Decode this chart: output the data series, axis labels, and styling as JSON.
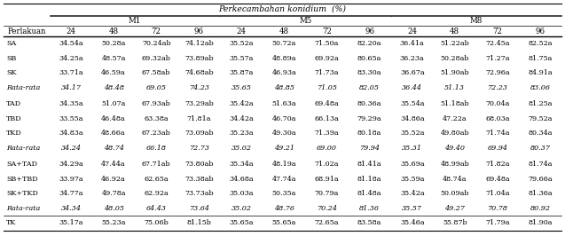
{
  "title": "Perkecambahan konidium  (%)",
  "time_labels": [
    "24",
    "48",
    "72",
    "96"
  ],
  "rows": [
    [
      "SA",
      "34.54a",
      "50.28a",
      "70.24ab",
      "74.12ab",
      "35.52a",
      "50.72a",
      "71.50a",
      "82.20a",
      "36.41a",
      "51.22ab",
      "72.45a",
      "82.52a"
    ],
    [
      "SB",
      "34.25a",
      "48.57a",
      "69.32ab",
      "73.89ab",
      "35.57a",
      "48.89a",
      "69.92a",
      "80.65a",
      "36.23a",
      "50.28ab",
      "71.27a",
      "81.75a"
    ],
    [
      "SK",
      "33.71a",
      "46.59a",
      "67.58ab",
      "74.68ab",
      "35.87a",
      "46.93a",
      "71.73a",
      "83.30a",
      "36.67a",
      "51.90ab",
      "72.96a",
      "84.91a"
    ],
    [
      "Rata-rata",
      "34.17",
      "48.48",
      "69.05",
      "74.23",
      "35.65",
      "48.85",
      "71.05",
      "82.05",
      "36.44",
      "51.13",
      "72.23",
      "83.06"
    ],
    [
      "TAD",
      "34.35a",
      "51.07a",
      "67.93ab",
      "73.29ab",
      "35.42a",
      "51.63a",
      "69.48a",
      "80.36a",
      "35.54a",
      "51.18ab",
      "70.04a",
      "81.25a"
    ],
    [
      "TBD",
      "33.55a",
      "46.48a",
      "63.38a",
      "71.81a",
      "34.42a",
      "46.70a",
      "66.13a",
      "79.29a",
      "34.86a",
      "47.22a",
      "68.03a",
      "79.52a"
    ],
    [
      "TKD",
      "34.83a",
      "48.66a",
      "67.23ab",
      "73.09ab",
      "35.23a",
      "49.30a",
      "71.39a",
      "80.18a",
      "35.52a",
      "49.80ab",
      "71.74a",
      "80.34a"
    ],
    [
      "Rata-rata",
      "34.24",
      "48.74",
      "66.18",
      "72.73",
      "35.02",
      "49.21",
      "69.00",
      "79.94",
      "35.31",
      "49.40",
      "69.94",
      "80.37"
    ],
    [
      "SA+TAD",
      "34.29a",
      "47.44a",
      "67.71ab",
      "73.80ab",
      "35.34a",
      "48.19a",
      "71.02a",
      "81.41a",
      "35.69a",
      "48.99ab",
      "71.82a",
      "81.74a"
    ],
    [
      "SB+TBD",
      "33.97a",
      "46.92a",
      "62.65a",
      "73.38ab",
      "34.68a",
      "47.74a",
      "68.91a",
      "81.18a",
      "35.59a",
      "48.74a",
      "69.48a",
      "79.66a"
    ],
    [
      "SK+TKD",
      "34.77a",
      "49.78a",
      "62.92a",
      "73.73ab",
      "35.03a",
      "50.35a",
      "70.79a",
      "81.48a",
      "35.42a",
      "50.09ab",
      "71.04a",
      "81.36a"
    ],
    [
      "Rata-rata",
      "34.34",
      "48.05",
      "64.43",
      "73.64",
      "35.02",
      "48.76",
      "70.24",
      "81.36",
      "35.57",
      "49.27",
      "70.78",
      "80.92"
    ],
    [
      "TK",
      "35.17a",
      "55.23a",
      "75.06b",
      "81.15b",
      "35.65a",
      "55.65a",
      "72.65a",
      "83.58a",
      "35.46a",
      "55.87b",
      "71.79a",
      "81.90a"
    ]
  ],
  "rata_rata_rows": [
    3,
    7,
    11
  ],
  "tk_row": 12,
  "bg_color": "#ffffff",
  "text_color": "#000000",
  "font_size": 5.8,
  "header_font_size": 6.2
}
